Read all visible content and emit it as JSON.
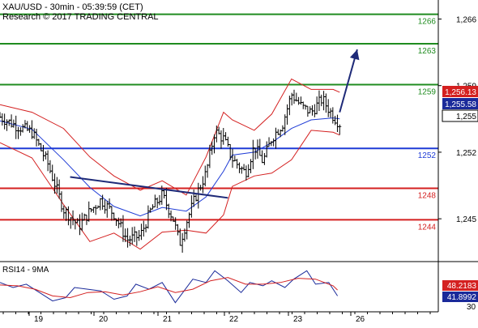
{
  "header": {
    "title": "XAU/USD - 30min - 05:39:59 (CET)",
    "copyright": "Research © 2017 TRADING CENTRAL"
  },
  "chart_data": [
    {
      "type": "line",
      "subtype": "ohlc-bars-with-bollinger-and-moving-average",
      "title": "XAU/USD - 30min - 05:39:59 (CET)",
      "x_tick_labels": [
        "19",
        "20",
        "21",
        "22",
        "23",
        "26"
      ],
      "y_tick_labels": [
        "1,266",
        "1,259",
        "1,252",
        "1,245"
      ],
      "ylim": [
        1240.5,
        1268.0
      ],
      "grid": false,
      "current_price_tags": [
        {
          "label": "1,256.13",
          "value": 1256.13,
          "color": "#d42020"
        },
        {
          "label": "1,255.58",
          "value": 1255.58,
          "color": "#1a2a9a"
        },
        {
          "label": "1,255",
          "value": 1255.0,
          "color": "#000000"
        }
      ],
      "horizontal_levels": [
        {
          "label": "1266",
          "value": 1266.5,
          "color": "#208c20"
        },
        {
          "label": "1263",
          "value": 1263.4,
          "color": "#208c20"
        },
        {
          "label": "1259",
          "value": 1259.1,
          "color": "#208c20"
        },
        {
          "label": "1252",
          "value": 1252.4,
          "color": "#1f3cd6"
        },
        {
          "label": "1248",
          "value": 1248.2,
          "color": "#d42020"
        },
        {
          "label": "1244",
          "value": 1244.9,
          "color": "#d42020"
        }
      ],
      "trendline": {
        "x": [
          0.16,
          0.52
        ],
        "y": [
          1249.4,
          1247.2
        ],
        "color": "#1e2a78"
      },
      "forecast_arrow": {
        "x": [
          0.775,
          0.815
        ],
        "y": [
          1256.2,
          1262.8
        ],
        "color": "#1e2a78"
      },
      "series": [
        {
          "name": "price",
          "color": "#000000",
          "x": [
            0.0,
            0.036,
            0.073,
            0.109,
            0.145,
            0.18,
            0.205,
            0.23,
            0.26,
            0.29,
            0.32,
            0.345,
            0.37,
            0.395,
            0.41,
            0.425,
            0.445,
            0.47,
            0.49,
            0.51,
            0.53,
            0.56,
            0.58,
            0.6,
            0.62,
            0.645,
            0.665,
            0.69,
            0.71,
            0.735,
            0.76,
            0.775
          ],
          "y": [
            1255.7,
            1254.8,
            1254.1,
            1250.8,
            1246.0,
            1244.2,
            1245.8,
            1247.0,
            1245.5,
            1242.8,
            1243.2,
            1246.0,
            1247.5,
            1245.0,
            1242.4,
            1244.6,
            1247.2,
            1249.8,
            1254.2,
            1253.4,
            1251.3,
            1249.8,
            1252.6,
            1251.0,
            1253.5,
            1255.0,
            1258.1,
            1256.7,
            1256.2,
            1257.6,
            1255.8,
            1255.0
          ]
        },
        {
          "name": "bollinger-upper",
          "color": "#d42020",
          "x": [
            0.0,
            0.073,
            0.145,
            0.205,
            0.26,
            0.32,
            0.37,
            0.425,
            0.47,
            0.51,
            0.53,
            0.58,
            0.62,
            0.665,
            0.71,
            0.76,
            0.775
          ],
          "y": [
            1257.0,
            1256.2,
            1254.5,
            1251.5,
            1249.5,
            1248.0,
            1249.0,
            1247.5,
            1251.5,
            1256.2,
            1255.4,
            1254.3,
            1256.0,
            1259.7,
            1258.6,
            1258.6,
            1258.3
          ]
        },
        {
          "name": "bollinger-lower",
          "color": "#d42020",
          "x": [
            0.0,
            0.073,
            0.145,
            0.205,
            0.26,
            0.32,
            0.37,
            0.425,
            0.47,
            0.51,
            0.53,
            0.58,
            0.62,
            0.665,
            0.71,
            0.76,
            0.775
          ],
          "y": [
            1253.0,
            1251.4,
            1246.5,
            1242.6,
            1243.5,
            1241.8,
            1243.6,
            1243.8,
            1243.5,
            1245.4,
            1248.4,
            1249.5,
            1249.8,
            1251.2,
            1254.3,
            1254.1,
            1253.8
          ]
        },
        {
          "name": "moving-average",
          "color": "#1f3cd6",
          "x": [
            0.0,
            0.073,
            0.145,
            0.205,
            0.26,
            0.32,
            0.37,
            0.425,
            0.47,
            0.51,
            0.53,
            0.58,
            0.62,
            0.665,
            0.71,
            0.76,
            0.775
          ],
          "y": [
            1255.3,
            1254.4,
            1251.2,
            1248.3,
            1246.3,
            1245.3,
            1246.2,
            1245.8,
            1247.3,
            1250.0,
            1251.7,
            1252.0,
            1253.0,
            1254.5,
            1255.4,
            1255.6,
            1255.5
          ]
        }
      ]
    },
    {
      "type": "line",
      "title": "RSI14 - 9MA",
      "ylim": [
        25,
        80
      ],
      "grid": false,
      "value_tags": [
        {
          "label": "48.2183",
          "value": 48.2183,
          "color": "#d42020"
        },
        {
          "label": "41.8992",
          "value": 41.8992,
          "color": "#1a2a9a"
        }
      ],
      "y_tick_labels": [
        "30"
      ],
      "series": [
        {
          "name": "RSI14",
          "color": "#1a2a9a",
          "x": [
            0.0,
            0.03,
            0.06,
            0.09,
            0.12,
            0.15,
            0.17,
            0.2,
            0.23,
            0.26,
            0.29,
            0.31,
            0.34,
            0.37,
            0.4,
            0.42,
            0.44,
            0.47,
            0.49,
            0.52,
            0.55,
            0.57,
            0.6,
            0.62,
            0.65,
            0.67,
            0.7,
            0.72,
            0.75,
            0.77
          ],
          "y": [
            58,
            52,
            56,
            46,
            36,
            40,
            52,
            50,
            48,
            38,
            42,
            56,
            50,
            58,
            34,
            48,
            62,
            58,
            72,
            60,
            46,
            58,
            54,
            60,
            52,
            62,
            72,
            56,
            58,
            42
          ]
        },
        {
          "name": "9MA",
          "color": "#d42020",
          "x": [
            0.0,
            0.04,
            0.08,
            0.12,
            0.16,
            0.2,
            0.24,
            0.28,
            0.32,
            0.36,
            0.4,
            0.44,
            0.48,
            0.52,
            0.56,
            0.6,
            0.64,
            0.68,
            0.72,
            0.76,
            0.77
          ],
          "y": [
            55,
            54,
            50,
            42,
            40,
            46,
            47,
            43,
            47,
            53,
            46,
            50,
            60,
            64,
            56,
            56,
            58,
            63,
            62,
            54,
            49
          ]
        }
      ]
    }
  ]
}
